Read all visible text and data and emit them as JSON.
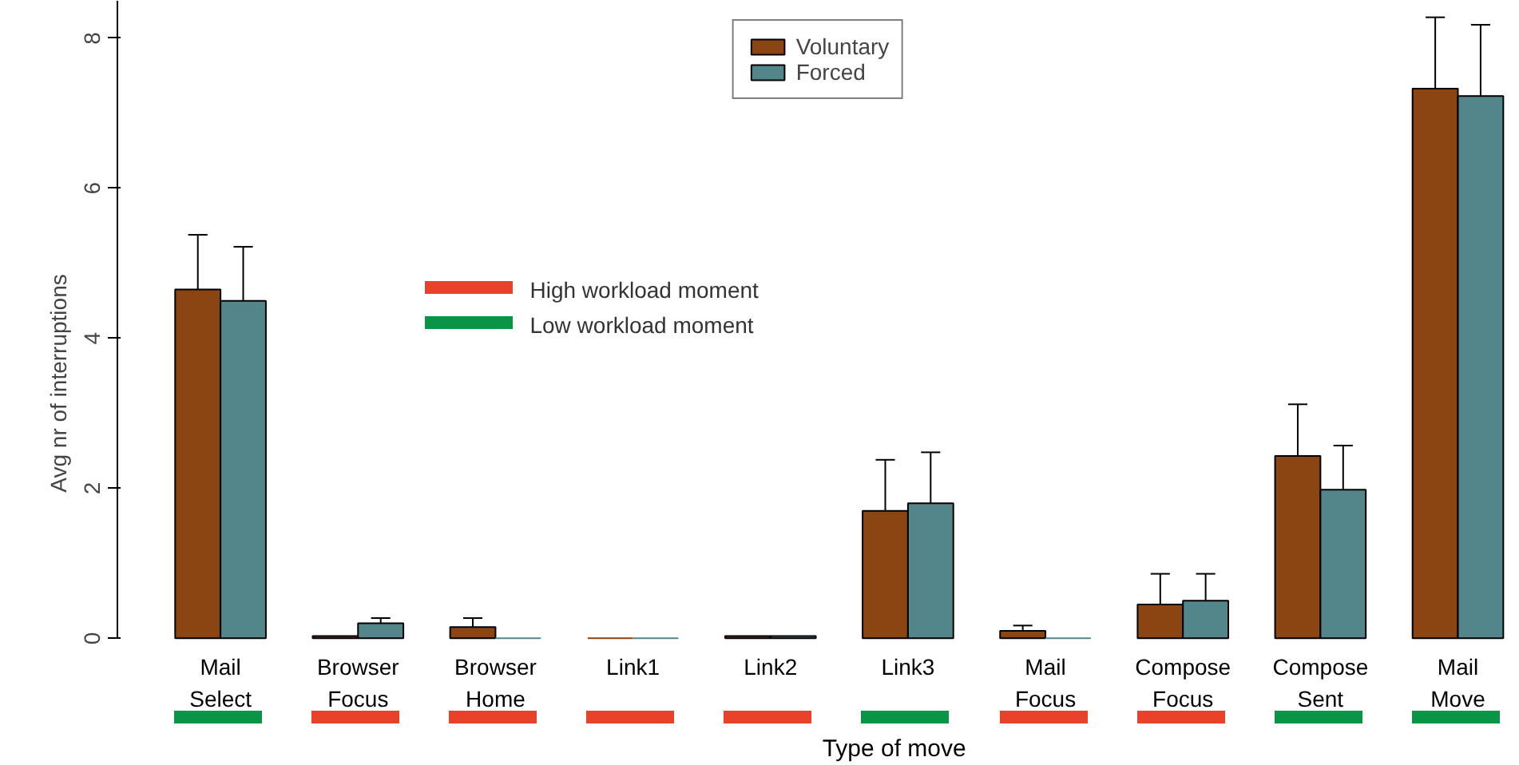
{
  "chart_data": {
    "type": "bar",
    "xlabel": "Type of move",
    "ylabel": "Avg nr of interruptions",
    "categories": [
      "Mail Select",
      "Browser Focus",
      "Browser Home",
      "Link1",
      "Link2",
      "Link3",
      "Mail Focus",
      "Compose Focus",
      "Compose Sent",
      "Mail Move"
    ],
    "series": [
      {
        "name": "Voluntary",
        "color": "#8b4513",
        "values": [
          4.65,
          0.03,
          0.15,
          0,
          0.03,
          1.7,
          0.1,
          0.45,
          2.43,
          7.33
        ],
        "errors": [
          [
            4.65,
            5.38
          ],
          null,
          [
            0.15,
            0.27
          ],
          null,
          null,
          [
            1.7,
            2.38
          ],
          [
            0.1,
            0.17
          ],
          [
            0.45,
            0.86
          ],
          [
            2.43,
            3.12
          ],
          [
            7.33,
            8.28
          ]
        ]
      },
      {
        "name": "Forced",
        "color": "#53868b",
        "values": [
          4.5,
          0.2,
          0,
          0,
          0.03,
          1.8,
          0,
          0.5,
          1.98,
          7.23
        ],
        "errors": [
          [
            4.5,
            5.22
          ],
          [
            0.2,
            0.27
          ],
          null,
          null,
          null,
          [
            1.8,
            2.48
          ],
          null,
          [
            0.5,
            0.86
          ],
          [
            1.98,
            2.57
          ],
          [
            7.23,
            8.18
          ]
        ]
      }
    ],
    "ylim": [
      0,
      8.5
    ],
    "yticks": [
      0,
      2,
      4,
      6,
      8
    ],
    "grid": false,
    "legend": "top",
    "annotations": [
      "High workload moment",
      "Low workload moment"
    ]
  }
}
